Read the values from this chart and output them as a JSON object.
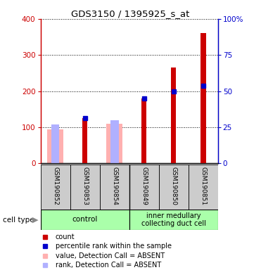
{
  "title": "GDS3150 / 1395925_s_at",
  "samples": [
    "GSM190852",
    "GSM190853",
    "GSM190854",
    "GSM190849",
    "GSM190850",
    "GSM190851"
  ],
  "group_labels": [
    "control",
    "inner medullary\ncollecting duct cell"
  ],
  "count_values": [
    null,
    125,
    null,
    180,
    265,
    360
  ],
  "percentile_values": [
    null,
    125,
    null,
    180,
    200,
    215
  ],
  "absent_value_bars": [
    95,
    null,
    110,
    null,
    null,
    null
  ],
  "absent_rank_bars": [
    108,
    null,
    120,
    null,
    null,
    null
  ],
  "left_yticks": [
    0,
    100,
    200,
    300,
    400
  ],
  "right_yticks": [
    0,
    25,
    50,
    75,
    100
  ],
  "right_ytick_labels": [
    "0",
    "25",
    "50",
    "75",
    "100%"
  ],
  "ylim": [
    0,
    400
  ],
  "right_ylim": [
    0,
    100
  ],
  "color_count": "#cc0000",
  "color_percentile": "#0000cc",
  "color_absent_value": "#ffb0b0",
  "color_absent_rank": "#b0b0ff",
  "color_group_bg": "#aaffaa",
  "color_sample_bg": "#cccccc",
  "legend_items": [
    {
      "label": "count",
      "color": "#cc0000"
    },
    {
      "label": "percentile rank within the sample",
      "color": "#0000cc"
    },
    {
      "label": "value, Detection Call = ABSENT",
      "color": "#ffb0b0"
    },
    {
      "label": "rank, Detection Call = ABSENT",
      "color": "#b0b0ff"
    }
  ]
}
